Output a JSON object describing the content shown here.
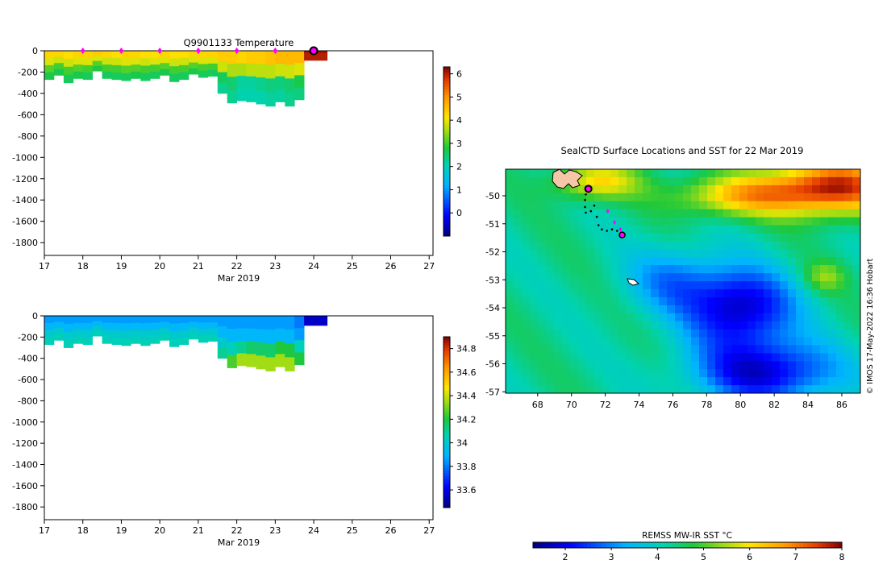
{
  "chart_data": [
    {
      "type": "heatmap",
      "title": "Q9901133  Temperature",
      "xlabel": "Mar 2019",
      "ylabel": "",
      "x_ticks": [
        "17",
        "18",
        "19",
        "20",
        "21",
        "22",
        "23",
        "24",
        "25",
        "26",
        "27"
      ],
      "y_ticks": [
        "0",
        "-200",
        "-400",
        "-600",
        "-800",
        "-1000",
        "-1200",
        "-1400",
        "-1600",
        "-1800"
      ],
      "xlim": [
        17,
        27.1
      ],
      "ylim": [
        -1920,
        0
      ],
      "colorbar": {
        "ticks": [
          "6",
          "5",
          "4",
          "3",
          "2",
          "1",
          "0"
        ],
        "range": [
          -1,
          6.3
        ]
      },
      "profile_markers_day": [
        18,
        19,
        20,
        21,
        22,
        23
      ],
      "current_profile_day": 24,
      "profiles": [
        {
          "t0": 17.0,
          "t1": 17.25,
          "bottom": -270,
          "temp": [
            4.3,
            3.9,
            3.1,
            2.7
          ]
        },
        {
          "t0": 17.25,
          "t1": 17.5,
          "bottom": -230,
          "temp": [
            4.3,
            3.8,
            3.0,
            2.7
          ]
        },
        {
          "t0": 17.5,
          "t1": 17.75,
          "bottom": -300,
          "temp": [
            4.2,
            3.8,
            3.0,
            2.6
          ]
        },
        {
          "t0": 17.75,
          "t1": 18.0,
          "bottom": -260,
          "temp": [
            4.3,
            3.9,
            3.1,
            2.7
          ]
        },
        {
          "t0": 18.0,
          "t1": 18.25,
          "bottom": -270,
          "temp": [
            4.3,
            3.9,
            3.0,
            2.6
          ]
        },
        {
          "t0": 18.25,
          "t1": 18.5,
          "bottom": -190,
          "temp": [
            4.4,
            3.9,
            3.1,
            2.8
          ]
        },
        {
          "t0": 18.5,
          "t1": 18.75,
          "bottom": -260,
          "temp": [
            4.3,
            3.8,
            3.0,
            2.6
          ]
        },
        {
          "t0": 18.75,
          "t1": 19.0,
          "bottom": -270,
          "temp": [
            4.2,
            3.8,
            3.0,
            2.6
          ]
        },
        {
          "t0": 19.0,
          "t1": 19.25,
          "bottom": -280,
          "temp": [
            4.3,
            3.9,
            3.1,
            2.6
          ]
        },
        {
          "t0": 19.25,
          "t1": 19.5,
          "bottom": -260,
          "temp": [
            4.3,
            3.9,
            3.1,
            2.7
          ]
        },
        {
          "t0": 19.5,
          "t1": 19.75,
          "bottom": -280,
          "temp": [
            4.2,
            3.8,
            3.0,
            2.6
          ]
        },
        {
          "t0": 19.75,
          "t1": 20.0,
          "bottom": -260,
          "temp": [
            4.2,
            3.9,
            3.0,
            2.6
          ]
        },
        {
          "t0": 20.0,
          "t1": 20.25,
          "bottom": -230,
          "temp": [
            4.3,
            3.9,
            3.1,
            2.7
          ]
        },
        {
          "t0": 20.25,
          "t1": 20.5,
          "bottom": -290,
          "temp": [
            4.2,
            3.8,
            3.0,
            2.6
          ]
        },
        {
          "t0": 20.5,
          "t1": 20.75,
          "bottom": -270,
          "temp": [
            4.2,
            3.8,
            3.0,
            2.6
          ]
        },
        {
          "t0": 20.75,
          "t1": 21.0,
          "bottom": -220,
          "temp": [
            4.3,
            3.9,
            3.1,
            2.7
          ]
        },
        {
          "t0": 21.0,
          "t1": 21.25,
          "bottom": -250,
          "temp": [
            4.3,
            3.9,
            3.0,
            2.6
          ]
        },
        {
          "t0": 21.25,
          "t1": 21.5,
          "bottom": -240,
          "temp": [
            4.3,
            3.9,
            3.0,
            2.6
          ]
        },
        {
          "t0": 21.5,
          "t1": 21.75,
          "bottom": -400,
          "temp": [
            4.4,
            3.8,
            2.6,
            2.3
          ]
        },
        {
          "t0": 21.75,
          "t1": 22.0,
          "bottom": -490,
          "temp": [
            4.4,
            3.6,
            2.5,
            2.3
          ]
        },
        {
          "t0": 22.0,
          "t1": 22.25,
          "bottom": -470,
          "temp": [
            4.3,
            3.6,
            2.2,
            2.1
          ]
        },
        {
          "t0": 22.25,
          "t1": 22.5,
          "bottom": -480,
          "temp": [
            4.4,
            3.7,
            2.2,
            2.1
          ]
        },
        {
          "t0": 22.5,
          "t1": 22.75,
          "bottom": -500,
          "temp": [
            4.4,
            3.7,
            2.3,
            2.1
          ]
        },
        {
          "t0": 22.75,
          "t1": 23.0,
          "bottom": -520,
          "temp": [
            4.5,
            3.7,
            2.4,
            2.2
          ]
        },
        {
          "t0": 23.0,
          "t1": 23.25,
          "bottom": -480,
          "temp": [
            4.6,
            3.8,
            2.4,
            2.2
          ]
        },
        {
          "t0": 23.25,
          "t1": 23.5,
          "bottom": -520,
          "temp": [
            4.6,
            3.8,
            2.5,
            2.3
          ]
        },
        {
          "t0": 23.5,
          "t1": 23.75,
          "bottom": -460,
          "temp": [
            4.6,
            3.9,
            2.7,
            2.4
          ]
        },
        {
          "t0": 23.75,
          "t1": 24.35,
          "bottom": -90,
          "temp": [
            6.1,
            6.0,
            6.0,
            6.0
          ]
        }
      ]
    },
    {
      "type": "heatmap",
      "title": "",
      "xlabel": "Mar 2019",
      "ylabel": "",
      "x_ticks": [
        "17",
        "18",
        "19",
        "20",
        "21",
        "22",
        "23",
        "24",
        "25",
        "26",
        "27"
      ],
      "y_ticks": [
        "0",
        "-200",
        "-400",
        "-600",
        "-800",
        "-1000",
        "-1200",
        "-1400",
        "-1600",
        "-1800"
      ],
      "xlim": [
        17,
        27.1
      ],
      "ylim": [
        -1920,
        0
      ],
      "colorbar": {
        "ticks": [
          "34.8",
          "34.6",
          "34.4",
          "34.2",
          "34",
          "33.8",
          "33.6"
        ],
        "range": [
          33.45,
          34.9
        ]
      },
      "profiles": [
        {
          "t0": 17.0,
          "t1": 17.25,
          "bottom": -270,
          "sal": [
            33.85,
            33.9,
            34.0,
            34.05
          ]
        },
        {
          "t0": 17.25,
          "t1": 17.5,
          "bottom": -230,
          "sal": [
            33.85,
            33.9,
            34.0,
            34.05
          ]
        },
        {
          "t0": 17.5,
          "t1": 17.75,
          "bottom": -300,
          "sal": [
            33.85,
            33.9,
            34.0,
            34.05
          ]
        },
        {
          "t0": 17.75,
          "t1": 18.0,
          "bottom": -260,
          "sal": [
            33.85,
            33.9,
            34.0,
            34.05
          ]
        },
        {
          "t0": 18.0,
          "t1": 18.25,
          "bottom": -270,
          "sal": [
            33.85,
            33.9,
            34.0,
            34.05
          ]
        },
        {
          "t0": 18.25,
          "t1": 18.5,
          "bottom": -190,
          "sal": [
            33.85,
            33.9,
            34.0,
            34.05
          ]
        },
        {
          "t0": 18.5,
          "t1": 18.75,
          "bottom": -260,
          "sal": [
            33.85,
            33.9,
            34.0,
            34.05
          ]
        },
        {
          "t0": 18.75,
          "t1": 19.0,
          "bottom": -270,
          "sal": [
            33.85,
            33.9,
            34.0,
            34.05
          ]
        },
        {
          "t0": 19.0,
          "t1": 19.25,
          "bottom": -280,
          "sal": [
            33.85,
            33.9,
            34.0,
            34.05
          ]
        },
        {
          "t0": 19.25,
          "t1": 19.5,
          "bottom": -260,
          "sal": [
            33.85,
            33.9,
            34.0,
            34.05
          ]
        },
        {
          "t0": 19.5,
          "t1": 19.75,
          "bottom": -280,
          "sal": [
            33.85,
            33.9,
            34.0,
            34.05
          ]
        },
        {
          "t0": 19.75,
          "t1": 20.0,
          "bottom": -260,
          "sal": [
            33.85,
            33.9,
            34.0,
            34.05
          ]
        },
        {
          "t0": 20.0,
          "t1": 20.25,
          "bottom": -230,
          "sal": [
            33.85,
            33.9,
            34.0,
            34.05
          ]
        },
        {
          "t0": 20.25,
          "t1": 20.5,
          "bottom": -290,
          "sal": [
            33.85,
            33.9,
            34.0,
            34.05
          ]
        },
        {
          "t0": 20.5,
          "t1": 20.75,
          "bottom": -270,
          "sal": [
            33.85,
            33.9,
            34.0,
            34.05
          ]
        },
        {
          "t0": 20.75,
          "t1": 21.0,
          "bottom": -220,
          "sal": [
            33.85,
            33.9,
            34.0,
            34.05
          ]
        },
        {
          "t0": 21.0,
          "t1": 21.25,
          "bottom": -250,
          "sal": [
            33.85,
            33.9,
            34.0,
            34.05
          ]
        },
        {
          "t0": 21.25,
          "t1": 21.5,
          "bottom": -240,
          "sal": [
            33.85,
            33.9,
            34.0,
            34.05
          ]
        },
        {
          "t0": 21.5,
          "t1": 21.75,
          "bottom": -400,
          "sal": [
            33.85,
            33.9,
            34.0,
            34.1
          ]
        },
        {
          "t0": 21.75,
          "t1": 22.0,
          "bottom": -490,
          "sal": [
            33.85,
            33.9,
            34.05,
            34.25
          ]
        },
        {
          "t0": 22.0,
          "t1": 22.25,
          "bottom": -470,
          "sal": [
            33.85,
            33.9,
            34.1,
            34.35
          ]
        },
        {
          "t0": 22.25,
          "t1": 22.5,
          "bottom": -480,
          "sal": [
            33.85,
            33.9,
            34.15,
            34.35
          ]
        },
        {
          "t0": 22.5,
          "t1": 22.75,
          "bottom": -500,
          "sal": [
            33.85,
            33.9,
            34.15,
            34.35
          ]
        },
        {
          "t0": 22.75,
          "t1": 23.0,
          "bottom": -520,
          "sal": [
            33.85,
            33.9,
            34.15,
            34.35
          ]
        },
        {
          "t0": 23.0,
          "t1": 23.25,
          "bottom": -480,
          "sal": [
            33.85,
            33.9,
            34.2,
            34.35
          ]
        },
        {
          "t0": 23.25,
          "t1": 23.5,
          "bottom": -520,
          "sal": [
            33.85,
            33.9,
            34.2,
            34.35
          ]
        },
        {
          "t0": 23.5,
          "t1": 23.75,
          "bottom": -460,
          "sal": [
            33.8,
            33.85,
            34.05,
            34.2
          ]
        },
        {
          "t0": 23.75,
          "t1": 24.35,
          "bottom": -90,
          "sal": [
            33.55,
            33.55,
            33.55,
            33.55
          ]
        }
      ]
    },
    {
      "type": "heatmap",
      "title": "SealCTD Surface Locations and SST for 22 Mar 2019",
      "xlabel": "",
      "ylabel": "",
      "x_ticks": [
        "68",
        "70",
        "72",
        "74",
        "76",
        "78",
        "80",
        "82",
        "84",
        "86"
      ],
      "y_ticks": [
        "-50",
        "-51",
        "-52",
        "-53",
        "-54",
        "-55",
        "-56",
        "-57"
      ],
      "xlim": [
        66.1,
        87.1
      ],
      "ylim": [
        -57.05,
        -49.05
      ],
      "colorbar": {
        "label": "REMSS MW-IR SST °C",
        "ticks": [
          "2",
          "3",
          "4",
          "5",
          "6",
          "7",
          "8"
        ],
        "range": [
          1.3,
          8.0
        ]
      },
      "credit": "© IMOS 17-May-2022 16:36 Hobart",
      "track": [
        [
          71.0,
          -49.75
        ],
        [
          70.85,
          -49.95
        ],
        [
          70.8,
          -50.15
        ],
        [
          70.8,
          -50.4
        ],
        [
          70.85,
          -50.6
        ],
        [
          71.15,
          -50.55
        ],
        [
          71.35,
          -50.35
        ],
        [
          71.5,
          -50.75
        ],
        [
          71.6,
          -51.05
        ],
        [
          71.8,
          -51.2
        ],
        [
          72.1,
          -51.25
        ],
        [
          72.4,
          -51.2
        ],
        [
          72.7,
          -51.25
        ],
        [
          72.95,
          -51.35
        ]
      ],
      "track_markers": [
        [
          72.15,
          -50.55
        ],
        [
          72.55,
          -50.95
        ],
        [
          72.9,
          -51.2
        ]
      ],
      "current_location": [
        71.0,
        -49.75
      ],
      "latest_location": [
        73.0,
        -51.4
      ]
    }
  ]
}
